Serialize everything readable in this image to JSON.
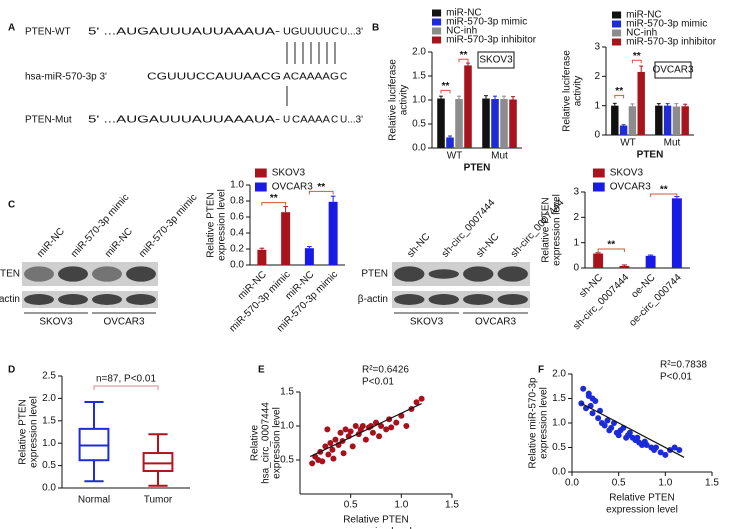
{
  "panel_labels": [
    "A",
    "B",
    "C",
    "D",
    "E",
    "F"
  ],
  "sequences": [
    {
      "name": "PTEN-WT",
      "parts": [
        "5' ...AUGAUUUAUUAAAUA-",
        "UGUUUUC",
        "U...3'"
      ]
    },
    {
      "name": "hsa-miR-570-3p 3'",
      "parts": [
        "CGUUUCCAUUAACG",
        "ACAAAAG",
        "C"
      ]
    },
    {
      "name": "PTEN-Mut",
      "parts": [
        "5' ...AUGAUUUAUUAAAUA-",
        "U",
        "CAAAA",
        "C",
        "U...3'"
      ]
    }
  ],
  "blots": [
    {
      "bands": [
        "PTEN",
        "β-actin"
      ],
      "lanes": [
        "miR-NC",
        "miR-570-3p mimic",
        "miR-NC",
        "miR-570-3p mimic"
      ],
      "groups": [
        "SKOV3",
        "OVCAR3"
      ]
    },
    {
      "bands": [
        "PTEN",
        "β-actin"
      ],
      "lanes": [
        "sh-NC",
        "sh-circ_0007444",
        "sh-NC",
        "sh-circ_0007444"
      ],
      "groups": [
        "SKOV3",
        "OVCAR3"
      ]
    }
  ],
  "chart_data": [
    {
      "type": "bar",
      "label": "SKOV3",
      "categories": [
        "WT",
        "Mut"
      ],
      "x_label": "PTEN",
      "y_label": [
        "Relative luciferase",
        "activity"
      ],
      "ylim": [
        0,
        2
      ],
      "yticks": [
        {
          "value": 0,
          "label": "0.0"
        },
        0.5,
        {
          "value": 1,
          "label": "1.0"
        },
        1.5,
        {
          "value": 2,
          "label": "2.0"
        }
      ],
      "series": [
        {
          "name": "miR-NC",
          "color": "#111111",
          "values": [
            1.03,
            1.03
          ],
          "errors": [
            0.05,
            0.06
          ]
        },
        {
          "name": "miR-570-3p mimic",
          "color": "#1f2bd6",
          "values": [
            0.22,
            1.02
          ],
          "errors": [
            0.03,
            0.06
          ]
        },
        {
          "name": "NC-inh",
          "color": "#8c8c8c",
          "values": [
            1.02,
            1.02
          ],
          "errors": [
            0.06,
            0.06
          ]
        },
        {
          "name": "miR-570-3p inhibitor",
          "color": "#a8141c",
          "values": [
            1.72,
            1.01
          ],
          "errors": [
            0.05,
            0.06
          ]
        }
      ],
      "annotations": [
        "**",
        "**"
      ]
    },
    {
      "type": "bar",
      "label": "OVCAR3",
      "categories": [
        "WT",
        "Mut"
      ],
      "x_label": "PTEN",
      "y_label": [
        "Relative luciferase",
        "activity"
      ],
      "ylim": [
        0,
        3
      ],
      "yticks": [
        0,
        1,
        2,
        3
      ],
      "series": [
        {
          "name": "miR-NC",
          "color": "#111111",
          "values": [
            1.0,
            1.0
          ],
          "errors": [
            0.08,
            0.07
          ]
        },
        {
          "name": "miR-570-3p mimic",
          "color": "#1f2bd6",
          "values": [
            0.32,
            1.0
          ],
          "errors": [
            0.03,
            0.07
          ]
        },
        {
          "name": "NC-inh",
          "color": "#8c8c8c",
          "values": [
            0.98,
            0.97
          ],
          "errors": [
            0.08,
            0.1
          ]
        },
        {
          "name": "miR-570-3p inhibitor",
          "color": "#a8141c",
          "values": [
            2.15,
            0.98
          ],
          "errors": [
            0.2,
            0.07
          ]
        }
      ],
      "annotations": [
        "**",
        "**"
      ]
    },
    {
      "type": "bar",
      "categories": [
        "miR-NC",
        "miR-570-3p mimic",
        "miR-NC",
        "miR-570-3p mimic"
      ],
      "y_label": [
        "Relative PTEN",
        "expression level"
      ],
      "ylim": [
        0,
        1
      ],
      "yticks": [
        {
          "value": 0,
          "label": "0.0"
        },
        0.2,
        0.4,
        0.6,
        0.8,
        {
          "value": 1,
          "label": "1.0"
        }
      ],
      "series": [
        {
          "name": "SKOV3",
          "color": "#a8141c",
          "values": [
            0.19,
            0.66,
            null,
            null
          ],
          "errors": [
            0.02,
            0.07,
            null,
            null
          ]
        },
        {
          "name": "OVCAR3",
          "color": "#1a1ae6",
          "values": [
            null,
            null,
            0.21,
            0.79
          ],
          "errors": [
            null,
            null,
            0.02,
            0.07
          ]
        }
      ],
      "annotations": [
        "**",
        "**"
      ]
    },
    {
      "type": "bar",
      "categories": [
        "sh-NC",
        "sh-circ_0007444",
        "oe-NC",
        "oe-circ_000744"
      ],
      "y_label": [
        "Relative PTEN",
        "expression level"
      ],
      "ylim": [
        0,
        3
      ],
      "yticks": [
        0,
        1,
        2,
        3
      ],
      "series": [
        {
          "name": "SKOV3",
          "color": "#a8141c",
          "values": [
            0.57,
            0.08,
            null,
            null
          ],
          "errors": [
            0.03,
            0.04,
            null,
            null
          ]
        },
        {
          "name": "OVCAR3",
          "color": "#1a1ae6",
          "values": [
            null,
            null,
            0.48,
            2.75
          ],
          "errors": [
            null,
            null,
            0.03,
            0.07
          ]
        }
      ],
      "annotations": [
        "**",
        "**"
      ]
    },
    {
      "type": "box",
      "y_label": [
        "Relative PTEN",
        "expression level"
      ],
      "ylim": [
        0,
        2.5
      ],
      "yticks": [
        {
          "value": 0,
          "label": "0.0"
        },
        0.5,
        {
          "value": 1,
          "label": "1.0"
        },
        1.5,
        {
          "value": 2,
          "label": "2.0"
        },
        2.5
      ],
      "boxes": [
        {
          "name": "Normal",
          "color": "#1f2bd6",
          "low": 0.15,
          "q1": 0.62,
          "median": 0.95,
          "q3": 1.32,
          "high": 1.92
        },
        {
          "name": "Tumor",
          "color": "#b0141c",
          "low": 0.05,
          "q1": 0.38,
          "median": 0.55,
          "q3": 0.78,
          "high": 1.2
        }
      ],
      "annotations": [
        "n=87, P<0.01"
      ]
    },
    {
      "type": "scatter",
      "color": "#a8111c",
      "x_label": [
        "Relative PTEN",
        "expression level"
      ],
      "y_label": [
        "Relative",
        "hsa_circ_0007444",
        "expression level"
      ],
      "xlim": [
        0,
        1.5
      ],
      "xticks": [
        0.5,
        {
          "value": 1,
          "label": "1.0"
        },
        1.5
      ],
      "ylim": [
        0,
        1.5
      ],
      "yticks": [
        0.5,
        {
          "value": 1,
          "label": "1.0"
        },
        1.5
      ],
      "x": [
        0.12,
        0.15,
        0.18,
        0.2,
        0.22,
        0.25,
        0.28,
        0.3,
        0.32,
        0.33,
        0.35,
        0.38,
        0.4,
        0.42,
        0.43,
        0.45,
        0.48,
        0.5,
        0.52,
        0.55,
        0.58,
        0.6,
        0.62,
        0.65,
        0.68,
        0.7,
        0.72,
        0.75,
        0.78,
        0.8,
        0.85,
        0.88,
        0.9,
        0.95,
        1.0,
        1.05,
        1.1,
        1.15,
        1.2,
        0.27
      ],
      "values": [
        0.45,
        0.55,
        0.5,
        0.62,
        0.48,
        0.7,
        0.58,
        0.75,
        0.65,
        0.52,
        0.8,
        0.72,
        0.9,
        0.78,
        0.6,
        0.95,
        0.85,
        0.92,
        0.7,
        1.0,
        0.88,
        0.95,
        1.0,
        0.8,
        0.98,
        1.0,
        0.9,
        1.05,
        0.85,
        1.0,
        0.95,
        1.1,
        0.98,
        1.05,
        1.15,
        1.0,
        1.25,
        1.35,
        1.4,
        0.95
      ],
      "fit": {
        "x": [
          0.1,
          1.2
        ],
        "values": [
          0.55,
          1.33
        ]
      },
      "annotations": [
        "R²=0.6426",
        "P<0.01"
      ]
    },
    {
      "type": "scatter",
      "color": "#1b2bd8",
      "x_label": [
        "Relative PTEN",
        "expression level"
      ],
      "y_label": [
        "Relative miR-570-3p",
        "expression level"
      ],
      "xlim": [
        0,
        1.5
      ],
      "xticks": [
        {
          "value": 0,
          "label": "0.0"
        },
        0.5,
        {
          "value": 1,
          "label": "1.0"
        },
        1.5
      ],
      "ylim": [
        0,
        2
      ],
      "yticks": [
        {
          "value": 0,
          "label": "0.0"
        },
        0.5,
        {
          "value": 1,
          "label": "1.0"
        },
        1.5,
        {
          "value": 2,
          "label": "2.0"
        }
      ],
      "x": [
        0.1,
        0.12,
        0.15,
        0.18,
        0.2,
        0.22,
        0.25,
        0.28,
        0.3,
        0.32,
        0.35,
        0.38,
        0.4,
        0.42,
        0.45,
        0.48,
        0.5,
        0.52,
        0.55,
        0.58,
        0.6,
        0.62,
        0.65,
        0.68,
        0.7,
        0.72,
        0.75,
        0.78,
        0.8,
        0.85,
        0.88,
        0.9,
        0.95,
        1.0,
        1.05,
        1.1,
        1.15,
        0.18,
        0.22
      ],
      "values": [
        1.4,
        1.7,
        1.3,
        1.55,
        1.35,
        1.2,
        1.45,
        1.1,
        1.25,
        1.0,
        0.95,
        1.05,
        0.85,
        0.9,
        1.0,
        0.8,
        0.75,
        0.85,
        0.9,
        0.7,
        0.75,
        0.8,
        0.7,
        0.65,
        0.7,
        0.6,
        0.55,
        0.62,
        0.55,
        0.5,
        0.45,
        0.5,
        0.4,
        0.35,
        0.45,
        0.5,
        0.45,
        1.6,
        1.5
      ],
      "fit": {
        "x": [
          0.1,
          1.2
        ],
        "values": [
          1.4,
          0.3
        ]
      },
      "annotations": [
        "R²=0.7838",
        "P<0.01"
      ]
    }
  ]
}
